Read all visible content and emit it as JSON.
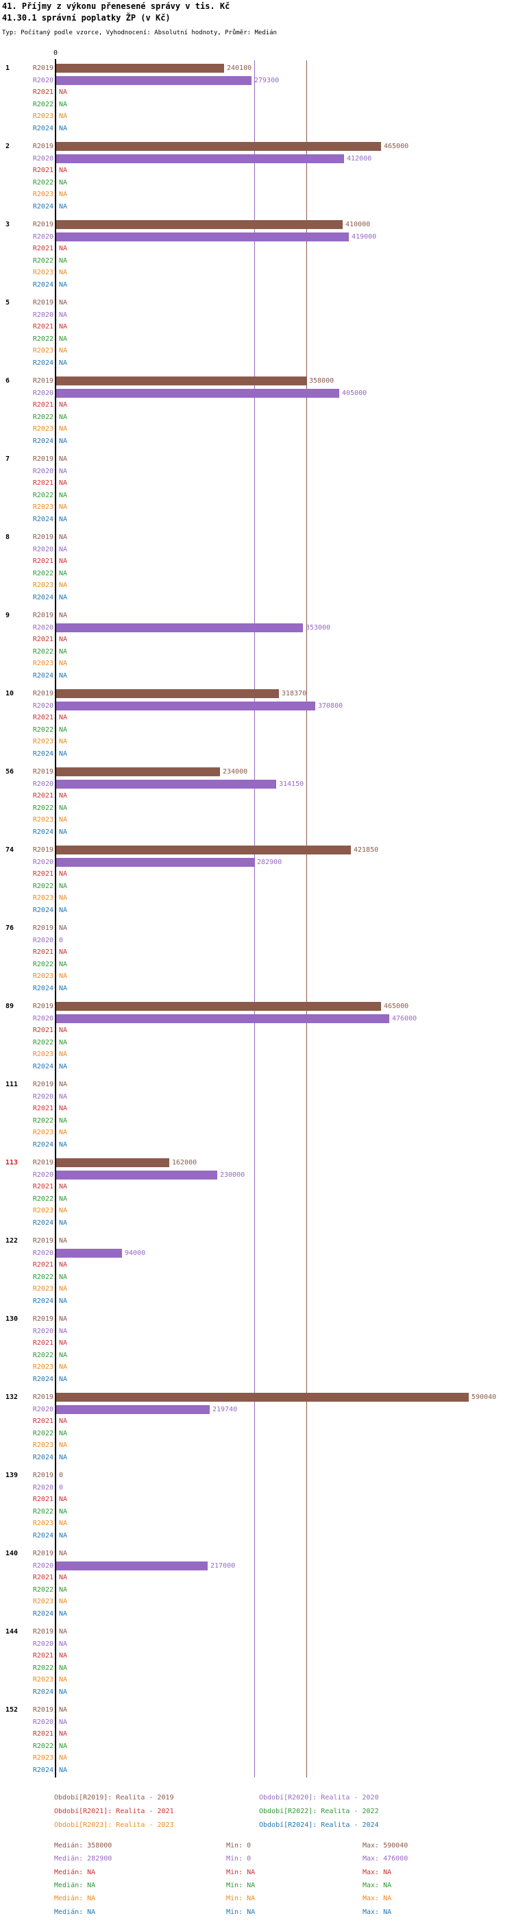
{
  "title": "41. Příjmy z výkonu přenesené správy v tis. Kč",
  "subtitle": "41.30.1 správní poplatky ŽP (v Kč)",
  "meta_line": "Typ: Počítaný podle vzorce, Vyhodnocení: Absolutní hodnoty, Průměr: Medián",
  "chart_data": {
    "type": "bar",
    "orientation": "horizontal",
    "value_unit": "Kč",
    "x_axis": {
      "zero_tick_label": "0",
      "min": 0,
      "max": 656000
    },
    "na_text": "NA",
    "series_labels": [
      "R2019",
      "R2020",
      "R2021",
      "R2022",
      "R2023",
      "R2024"
    ],
    "series_colors": {
      "R2019": "#8C5A4B",
      "R2020": "#9669C3",
      "R2021": "#CC3333",
      "R2022": "#2E9933",
      "R2023": "#EF8A20",
      "R2024": "#2277B4"
    },
    "highlight_group_color": "#CC2222",
    "median_lines": [
      {
        "series": "R2019",
        "value": 358000,
        "color": "#8C5A4B"
      },
      {
        "series": "R2020",
        "value": 282900,
        "color": "#9669C3"
      }
    ],
    "groups": [
      {
        "id": "1",
        "highlight": false,
        "values": {
          "R2019": 240100,
          "R2020": 279300,
          "R2021": null,
          "R2022": null,
          "R2023": null,
          "R2024": null
        }
      },
      {
        "id": "2",
        "highlight": false,
        "values": {
          "R2019": 465000,
          "R2020": 412000,
          "R2021": null,
          "R2022": null,
          "R2023": null,
          "R2024": null
        }
      },
      {
        "id": "3",
        "highlight": false,
        "values": {
          "R2019": 410000,
          "R2020": 419000,
          "R2021": null,
          "R2022": null,
          "R2023": null,
          "R2024": null
        }
      },
      {
        "id": "5",
        "highlight": false,
        "values": {
          "R2019": null,
          "R2020": null,
          "R2021": null,
          "R2022": null,
          "R2023": null,
          "R2024": null
        }
      },
      {
        "id": "6",
        "highlight": false,
        "values": {
          "R2019": 358000,
          "R2020": 405000,
          "R2021": null,
          "R2022": null,
          "R2023": null,
          "R2024": null
        }
      },
      {
        "id": "7",
        "highlight": false,
        "values": {
          "R2019": null,
          "R2020": null,
          "R2021": null,
          "R2022": null,
          "R2023": null,
          "R2024": null
        }
      },
      {
        "id": "8",
        "highlight": false,
        "values": {
          "R2019": null,
          "R2020": null,
          "R2021": null,
          "R2022": null,
          "R2023": null,
          "R2024": null
        }
      },
      {
        "id": "9",
        "highlight": false,
        "values": {
          "R2019": null,
          "R2020": 353000,
          "R2021": null,
          "R2022": null,
          "R2023": null,
          "R2024": null
        }
      },
      {
        "id": "10",
        "highlight": false,
        "values": {
          "R2019": 318370,
          "R2020": 370800,
          "R2021": null,
          "R2022": null,
          "R2023": null,
          "R2024": null
        }
      },
      {
        "id": "56",
        "highlight": false,
        "values": {
          "R2019": 234000,
          "R2020": 314150,
          "R2021": null,
          "R2022": null,
          "R2023": null,
          "R2024": null
        }
      },
      {
        "id": "74",
        "highlight": false,
        "values": {
          "R2019": 421850,
          "R2020": 282900,
          "R2021": null,
          "R2022": null,
          "R2023": null,
          "R2024": null
        }
      },
      {
        "id": "76",
        "highlight": false,
        "values": {
          "R2019": null,
          "R2020": 0,
          "R2021": null,
          "R2022": null,
          "R2023": null,
          "R2024": null
        }
      },
      {
        "id": "89",
        "highlight": false,
        "values": {
          "R2019": 465000,
          "R2020": 476000,
          "R2021": null,
          "R2022": null,
          "R2023": null,
          "R2024": null
        }
      },
      {
        "id": "111",
        "highlight": false,
        "values": {
          "R2019": null,
          "R2020": null,
          "R2021": null,
          "R2022": null,
          "R2023": null,
          "R2024": null
        }
      },
      {
        "id": "113",
        "highlight": true,
        "values": {
          "R2019": 162000,
          "R2020": 230000,
          "R2021": null,
          "R2022": null,
          "R2023": null,
          "R2024": null
        }
      },
      {
        "id": "122",
        "highlight": false,
        "values": {
          "R2019": null,
          "R2020": 94000,
          "R2021": null,
          "R2022": null,
          "R2023": null,
          "R2024": null
        }
      },
      {
        "id": "130",
        "highlight": false,
        "values": {
          "R2019": null,
          "R2020": null,
          "R2021": null,
          "R2022": null,
          "R2023": null,
          "R2024": null
        }
      },
      {
        "id": "132",
        "highlight": false,
        "values": {
          "R2019": 590040,
          "R2020": 219740,
          "R2021": null,
          "R2022": null,
          "R2023": null,
          "R2024": null
        }
      },
      {
        "id": "139",
        "highlight": false,
        "values": {
          "R2019": 0,
          "R2020": 0,
          "R2021": null,
          "R2022": null,
          "R2023": null,
          "R2024": null
        }
      },
      {
        "id": "140",
        "highlight": false,
        "values": {
          "R2019": null,
          "R2020": 217000,
          "R2021": null,
          "R2022": null,
          "R2023": null,
          "R2024": null
        }
      },
      {
        "id": "144",
        "highlight": false,
        "values": {
          "R2019": null,
          "R2020": null,
          "R2021": null,
          "R2022": null,
          "R2023": null,
          "R2024": null
        }
      },
      {
        "id": "152",
        "highlight": false,
        "values": {
          "R2019": null,
          "R2020": null,
          "R2021": null,
          "R2022": null,
          "R2023": null,
          "R2024": null
        }
      }
    ]
  },
  "legend": {
    "periods": [
      {
        "series": "R2019",
        "label": "Období[R2019]: Realita - 2019"
      },
      {
        "series": "R2020",
        "label": "Období[R2020]: Realita - 2020"
      },
      {
        "series": "R2021",
        "label": "Období[R2021]: Realita - 2021"
      },
      {
        "series": "R2022",
        "label": "Období[R2022]: Realita - 2022"
      },
      {
        "series": "R2023",
        "label": "Období[R2023]: Realita - 2023"
      },
      {
        "series": "R2024",
        "label": "Období[R2024]: Realita - 2024"
      }
    ],
    "stats": [
      {
        "series": "R2019",
        "median": "Medián: 358000",
        "min": "Min: 0",
        "max": "Max: 590040"
      },
      {
        "series": "R2020",
        "median": "Medián: 282900",
        "min": "Min: 0",
        "max": "Max: 476000"
      },
      {
        "series": "R2021",
        "median": "Medián: NA",
        "min": "Min: NA",
        "max": "Max: NA"
      },
      {
        "series": "R2022",
        "median": "Medián: NA",
        "min": "Min: NA",
        "max": "Max: NA"
      },
      {
        "series": "R2023",
        "median": "Medián: NA",
        "min": "Min: NA",
        "max": "Max: NA"
      },
      {
        "series": "R2024",
        "median": "Medián: NA",
        "min": "Min: NA",
        "max": "Max: NA"
      }
    ]
  }
}
